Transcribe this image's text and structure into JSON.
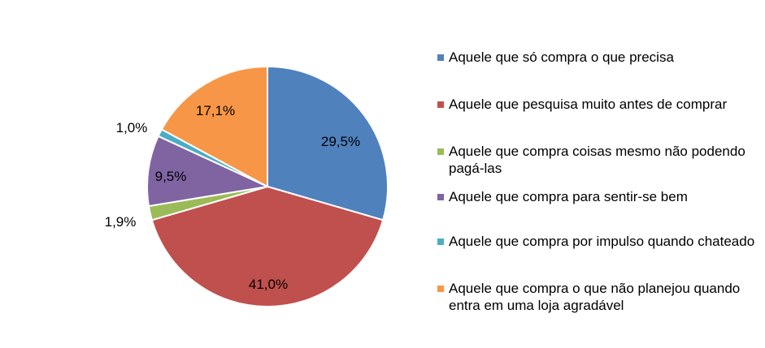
{
  "chart_data": {
    "type": "pie",
    "title": "",
    "slices": [
      {
        "label": "Aquele que só compra o que precisa",
        "value": 29.5,
        "display": "29,5%",
        "color": "#4F81BD"
      },
      {
        "label": "Aquele que pesquisa muito antes de comprar",
        "value": 41.0,
        "display": "41,0%",
        "color": "#C0504D"
      },
      {
        "label": "Aquele que compra coisas mesmo não podendo pagá-las",
        "value": 1.9,
        "display": "1,9%",
        "color": "#9BBB59"
      },
      {
        "label": "Aquele que compra para sentir-se bem",
        "value": 9.5,
        "display": "9,5%",
        "color": "#8064A2"
      },
      {
        "label": "Aquele que compra por impulso quando chateado",
        "value": 1.0,
        "display": "1,0%",
        "color": "#4BACC6"
      },
      {
        "label": "Aquele que compra o que não planejou quando entra em uma loja agradável",
        "value": 17.1,
        "display": "17,1%",
        "color": "#F79646"
      }
    ],
    "legend_position": "right",
    "start_angle": "12 o'clock",
    "direction": "clockwise"
  }
}
